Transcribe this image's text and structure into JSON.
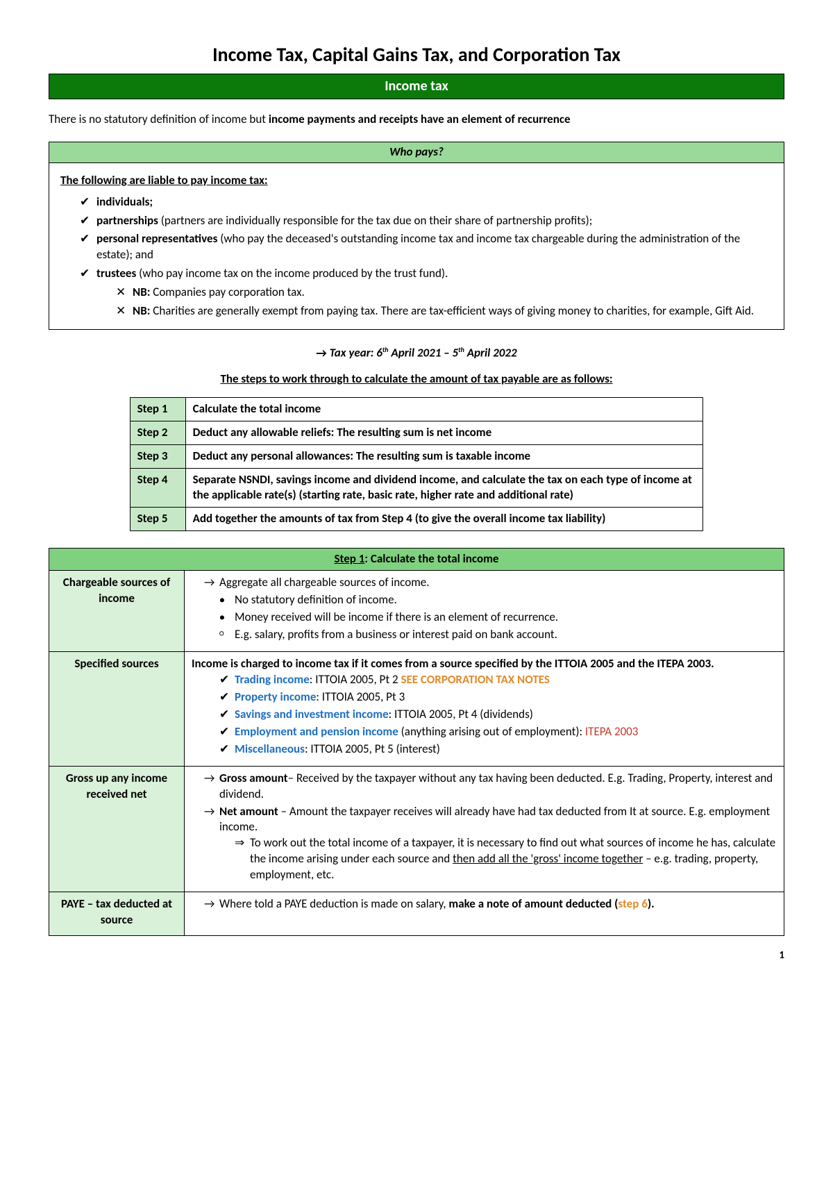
{
  "title": "Income Tax, Capital Gains Tax, and Corporation Tax",
  "banner": "Income tax",
  "intro_pre": "There is no statutory definition of income but ",
  "intro_bold": "income payments and receipts have an element of recurrence",
  "whopays": {
    "header": "Who pays?",
    "lead": "The following are liable to pay income tax:",
    "items": [
      {
        "bold": "individuals;",
        "rest": ""
      },
      {
        "bold": "partnerships",
        "rest": " (partners are individually responsible for the tax due on their share of partnership profits);"
      },
      {
        "bold": "personal representatives",
        "rest": " (who pay the deceased's outstanding income tax and income tax chargeable during the administration of the estate); and"
      },
      {
        "bold": "trustees",
        "rest": " (who pay income tax on the income produced by the trust fund)."
      }
    ],
    "nb1_pre": "NB:",
    "nb1_text": " Companies pay corporation tax.",
    "nb2_pre": "NB:",
    "nb2_text": " Charities are generally exempt from paying tax. There are tax-efficient ways of giving money to charities, for example, Gift Aid."
  },
  "taxyear_html": "Tax year: 6<sup>th</sup> April 2021 – 5<sup>th</sup> April 2022",
  "steps_intro": "The steps to work through to calculate the amount of tax payable are as follows:",
  "steps": [
    {
      "n": "Step 1",
      "t": "Calculate the total income"
    },
    {
      "n": "Step 2",
      "t": "Deduct any allowable reliefs: The resulting sum is net income"
    },
    {
      "n": "Step 3",
      "t": "Deduct any personal allowances: The resulting sum is taxable income"
    },
    {
      "n": "Step 4",
      "t": "Separate NSNDI, savings income and dividend income, and calculate the tax on each type of income at the applicable rate(s) (starting rate, basic rate, higher rate and additional rate)"
    },
    {
      "n": "Step 5",
      "t": "Add together the amounts of tax from Step 4 (to give the overall income tax liability)"
    }
  ],
  "step1": {
    "header_u": "Step 1",
    "header_rest": ": Calculate the total income",
    "rows": {
      "chargeable": {
        "label": "Chargeable sources of income",
        "arrow": "Aggregate all chargeable sources of income.",
        "b1": "No statutory definition of income.",
        "b2": "Money received will be income if there is an element of recurrence.",
        "c1": "E.g. salary, profits from a business or interest paid on bank account."
      },
      "specified": {
        "label": "Specified sources",
        "intro": "Income is charged to income tax if it comes from a source specified by the ITTOIA 2005 and the ITEPA 2003.",
        "i1_blue": "Trading income",
        "i1_rest": ": ITTOIA 2005, Pt 2 ",
        "i1_orange": "SEE CORPORATION TAX NOTES",
        "i2_blue": "Property income",
        "i2_rest": ": ITTOIA 2005, Pt 3",
        "i3_blue": "Savings and investment income",
        "i3_rest": ": ITTOIA 2005, Pt 4 (dividends)",
        "i4_blue": "Employment and pension income",
        "i4_mid": " (anything arising out of employment): ",
        "i4_red": "ITEPA 2003",
        "i5_blue": "Miscellaneous",
        "i5_rest": ": ITTOIA 2005, Pt 5 (interest)"
      },
      "gross": {
        "label": "Gross up any income received net",
        "a1_bold": "Gross amount",
        "a1_rest": "– Received by the taxpayer without any tax having been deducted. E.g. Trading, Property, interest and dividend.",
        "a2_bold": "Net amount",
        "a2_rest": " – Amount the taxpayer receives will already have had tax deducted from It at source. E.g. employment income.",
        "d1_pre": "To work out the total income of a taxpayer, it is necessary to find out what sources of income he has, calculate the income arising under each source and ",
        "d1_u": "then add all the 'gross' income together",
        "d1_post": " – e.g. trading, property, employment, etc."
      },
      "paye": {
        "label": "PAYE – tax deducted at source",
        "a_pre": "Where told a PAYE deduction is made on salary, ",
        "a_bold": "make a note of amount deducted (",
        "a_orange": "step 6",
        "a_close": ")."
      }
    }
  },
  "pagenum": "1",
  "colors": {
    "banner_dark": "#0b7a0b",
    "header_light": "#9ad99a",
    "cell_light": "#c7e8c7",
    "section_header": "#7fd17f",
    "label_bg": "#d9f0d9",
    "blue": "#1f6fbf",
    "red": "#c43b2e",
    "orange": "#e08a2b"
  }
}
